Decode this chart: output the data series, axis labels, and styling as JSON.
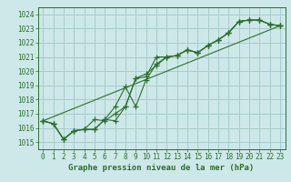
{
  "title": "Graphe pression niveau de la mer (hPa)",
  "bg_color": "#cde8e8",
  "grid_color": "#a8cccc",
  "line_color": "#2d6e2d",
  "xlim": [
    -0.5,
    23.5
  ],
  "ylim": [
    1014.5,
    1024.5
  ],
  "yticks": [
    1015,
    1016,
    1017,
    1018,
    1019,
    1020,
    1021,
    1022,
    1023,
    1024
  ],
  "xticks": [
    0,
    1,
    2,
    3,
    4,
    5,
    6,
    7,
    8,
    9,
    10,
    11,
    12,
    13,
    14,
    15,
    16,
    17,
    18,
    19,
    20,
    21,
    22,
    23
  ],
  "line1": [
    1016.5,
    1016.3,
    1015.2,
    1015.8,
    1015.9,
    1015.9,
    1016.6,
    1016.5,
    1017.5,
    1019.5,
    1019.6,
    1021.0,
    1021.0,
    1021.1,
    1021.5,
    1021.3,
    1021.8,
    1022.2,
    1022.7,
    1023.5,
    1023.6,
    1023.6,
    1023.3,
    1023.2
  ],
  "line2": [
    1016.5,
    1016.3,
    1015.2,
    1015.8,
    1015.9,
    1015.9,
    1016.6,
    1017.5,
    1018.9,
    1017.5,
    1019.4,
    1020.5,
    1021.0,
    1021.1,
    1021.5,
    1021.3,
    1021.8,
    1022.2,
    1022.7,
    1023.5,
    1023.6,
    1023.6,
    1023.3,
    1023.2
  ],
  "line3_x": [
    0,
    23
  ],
  "line3_y": [
    1016.5,
    1023.2
  ],
  "line4": [
    1016.5,
    1016.3,
    1015.2,
    1015.8,
    1015.9,
    1016.6,
    1016.5,
    1017.0,
    1017.5,
    1019.5,
    1019.8,
    1020.4,
    1021.0,
    1021.1,
    1021.5,
    1021.3,
    1021.8,
    1022.2,
    1022.7,
    1023.5,
    1023.6,
    1023.6,
    1023.3,
    1023.2
  ],
  "title_fontsize": 6.5,
  "tick_fontsize": 5.5,
  "xlabel_fontsize": 6.5
}
